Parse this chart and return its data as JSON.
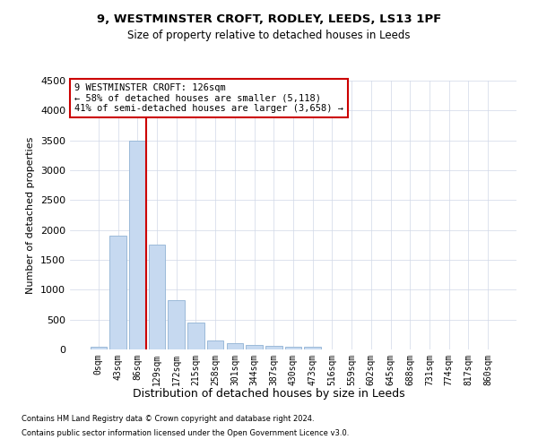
{
  "title1": "9, WESTMINSTER CROFT, RODLEY, LEEDS, LS13 1PF",
  "title2": "Size of property relative to detached houses in Leeds",
  "xlabel": "Distribution of detached houses by size in Leeds",
  "ylabel": "Number of detached properties",
  "bar_labels": [
    "0sqm",
    "43sqm",
    "86sqm",
    "129sqm",
    "172sqm",
    "215sqm",
    "258sqm",
    "301sqm",
    "344sqm",
    "387sqm",
    "430sqm",
    "473sqm",
    "516sqm",
    "559sqm",
    "602sqm",
    "645sqm",
    "688sqm",
    "731sqm",
    "774sqm",
    "817sqm",
    "860sqm"
  ],
  "bar_heights": [
    40,
    1900,
    3500,
    1750,
    830,
    445,
    155,
    100,
    75,
    55,
    45,
    40,
    5,
    3,
    2,
    1,
    0,
    0,
    0,
    0,
    0
  ],
  "bar_color": "#c6d9f0",
  "bar_edge_color": "#9bbad9",
  "ylim": [
    0,
    4500
  ],
  "yticks": [
    0,
    500,
    1000,
    1500,
    2000,
    2500,
    3000,
    3500,
    4000,
    4500
  ],
  "vline_color": "#cc0000",
  "annotation_text": "9 WESTMINSTER CROFT: 126sqm\n← 58% of detached houses are smaller (5,118)\n41% of semi-detached houses are larger (3,658) →",
  "annotation_box_color": "#ffffff",
  "annotation_box_edge": "#cc0000",
  "footer1": "Contains HM Land Registry data © Crown copyright and database right 2024.",
  "footer2": "Contains public sector information licensed under the Open Government Licence v3.0.",
  "bg_color": "#ffffff",
  "grid_color": "#d0d8e8"
}
